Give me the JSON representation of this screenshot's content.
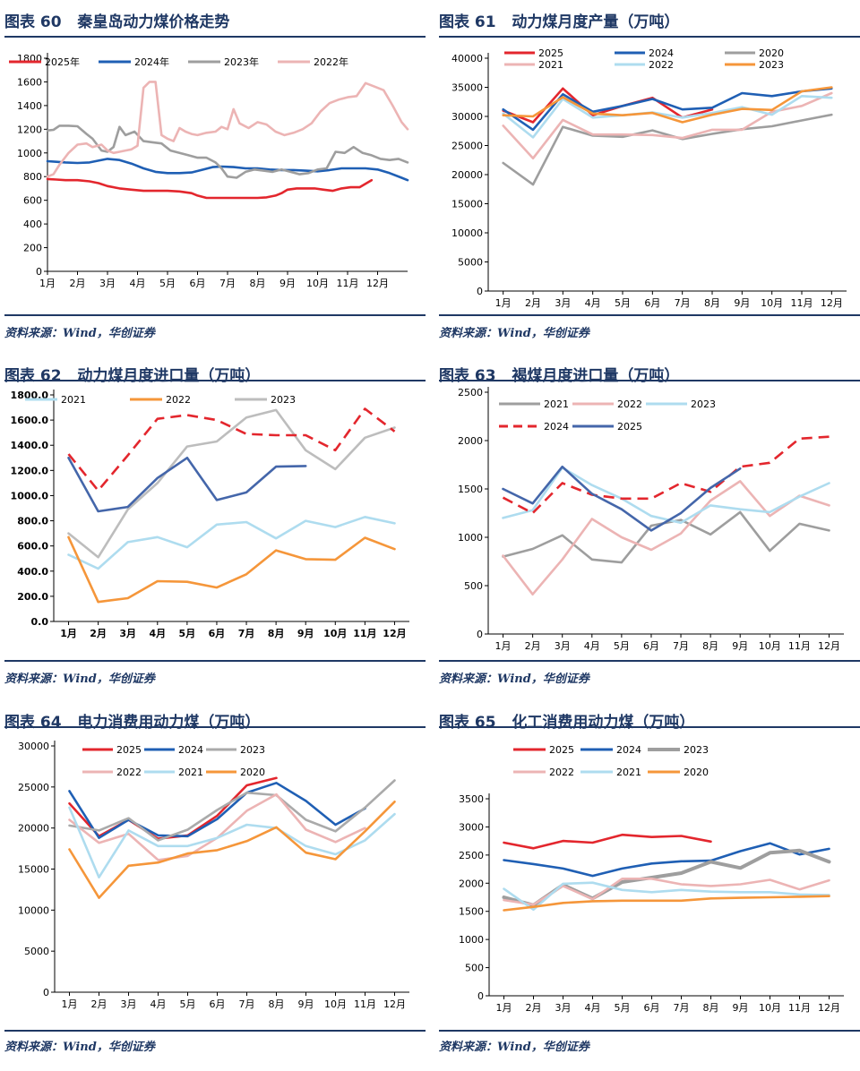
{
  "source_text": "资料来源：Wind，华创证券",
  "figures": [
    {
      "id": "fig60",
      "title": "图表 60   秦皇岛动力煤价格走势"
    },
    {
      "id": "fig61",
      "title": "图表 61   动力煤月度产量（万吨）"
    },
    {
      "id": "fig62",
      "title": "图表 62   动力煤月度进口量（万吨）"
    },
    {
      "id": "fig63",
      "title": "图表 63   褐煤月度进口量（万吨）"
    },
    {
      "id": "fig64",
      "title": "图表 64   电力消费用动力煤（万吨）"
    },
    {
      "id": "fig65",
      "title": "图表 65   化工消费用动力煤（万吨）"
    }
  ],
  "chart_data": [
    {
      "id": "fig60",
      "type": "line",
      "title": "秦皇岛动力煤价格走势",
      "categories": [
        "1月",
        "2月",
        "3月",
        "4月",
        "5月",
        "6月",
        "7月",
        "8月",
        "9月",
        "10月",
        "11月",
        "12月"
      ],
      "yticks": [
        0,
        200,
        400,
        600,
        800,
        1000,
        1200,
        1400,
        1600,
        1800
      ],
      "ylim": [
        0,
        1800
      ],
      "xlim": [
        0,
        12
      ],
      "tick_decimals": 0,
      "legend_position": "top",
      "series": [
        {
          "name": "2025年",
          "color": "#e3262d",
          "x": [
            0,
            0.3,
            0.6,
            1.0,
            1.4,
            1.7,
            2.0,
            2.4,
            2.8,
            3.2,
            3.6,
            4.0,
            4.4,
            4.8,
            5.0,
            5.3,
            5.7,
            6.0,
            6.5,
            7.0,
            7.3,
            7.6,
            7.8,
            8.0,
            8.3,
            8.6,
            8.9,
            9.2,
            9.5,
            9.8,
            10.1,
            10.4,
            10.8
          ],
          "values": [
            780,
            775,
            770,
            770,
            760,
            745,
            720,
            700,
            690,
            680,
            680,
            680,
            675,
            660,
            640,
            620,
            620,
            620,
            620,
            620,
            625,
            640,
            660,
            690,
            700,
            700,
            700,
            690,
            680,
            700,
            710,
            710,
            770
          ]
        },
        {
          "name": "2024年",
          "color": "#1f5fb4",
          "x": [
            0,
            0.3,
            0.6,
            1.0,
            1.4,
            1.7,
            2.0,
            2.4,
            2.8,
            3.2,
            3.6,
            4.0,
            4.4,
            4.8,
            5.2,
            5.5,
            5.8,
            6.2,
            6.6,
            7.0,
            7.4,
            7.8,
            8.2,
            8.6,
            9.0,
            9.4,
            9.8,
            10.2,
            10.6,
            11.0,
            11.4,
            11.8,
            12.0
          ],
          "values": [
            930,
            925,
            920,
            915,
            920,
            935,
            950,
            940,
            910,
            870,
            840,
            830,
            830,
            835,
            860,
            880,
            885,
            880,
            870,
            870,
            860,
            855,
            855,
            850,
            845,
            855,
            870,
            870,
            870,
            860,
            830,
            790,
            770
          ]
        },
        {
          "name": "2023年",
          "color": "#9e9e9e",
          "x": [
            0,
            0.2,
            0.4,
            0.7,
            1.0,
            1.3,
            1.5,
            1.8,
            2.0,
            2.2,
            2.4,
            2.6,
            2.9,
            3.2,
            3.5,
            3.8,
            4.1,
            4.4,
            4.7,
            5.0,
            5.3,
            5.6,
            5.8,
            6.0,
            6.3,
            6.6,
            6.9,
            7.2,
            7.5,
            7.8,
            8.1,
            8.4,
            8.7,
            9.0,
            9.3,
            9.6,
            9.9,
            10.2,
            10.5,
            10.8,
            11.1,
            11.4,
            11.7,
            12.0
          ],
          "values": [
            1190,
            1195,
            1230,
            1230,
            1225,
            1160,
            1120,
            1020,
            1010,
            1050,
            1220,
            1150,
            1180,
            1100,
            1090,
            1080,
            1020,
            1000,
            980,
            960,
            960,
            920,
            870,
            800,
            790,
            840,
            860,
            850,
            840,
            860,
            840,
            820,
            830,
            860,
            870,
            1010,
            1000,
            1050,
            1000,
            980,
            950,
            940,
            950,
            920
          ]
        },
        {
          "name": "2022年",
          "color": "#ecb4b4",
          "x": [
            0,
            0.2,
            0.4,
            0.7,
            1.0,
            1.3,
            1.5,
            1.8,
            2.0,
            2.2,
            2.4,
            2.6,
            2.8,
            3.0,
            3.2,
            3.4,
            3.6,
            3.8,
            4.0,
            4.2,
            4.4,
            4.6,
            4.8,
            5.0,
            5.3,
            5.6,
            5.8,
            6.0,
            6.2,
            6.4,
            6.7,
            7.0,
            7.3,
            7.6,
            7.9,
            8.2,
            8.5,
            8.8,
            9.1,
            9.4,
            9.7,
            10.0,
            10.3,
            10.6,
            10.9,
            11.2,
            11.5,
            11.8,
            12.0
          ],
          "values": [
            800,
            820,
            900,
            1000,
            1070,
            1080,
            1050,
            1070,
            1020,
            1000,
            1010,
            1020,
            1030,
            1060,
            1550,
            1600,
            1600,
            1150,
            1120,
            1100,
            1210,
            1180,
            1160,
            1150,
            1170,
            1180,
            1220,
            1200,
            1370,
            1250,
            1210,
            1260,
            1240,
            1180,
            1150,
            1170,
            1200,
            1250,
            1350,
            1420,
            1450,
            1470,
            1480,
            1590,
            1560,
            1530,
            1400,
            1260,
            1200
          ]
        }
      ]
    },
    {
      "id": "fig61",
      "type": "line",
      "title": "动力煤月度产量（万吨）",
      "categories": [
        "1月",
        "2月",
        "3月",
        "4月",
        "5月",
        "6月",
        "7月",
        "8月",
        "9月",
        "10月",
        "11月",
        "12月"
      ],
      "yticks": [
        0,
        5000,
        10000,
        15000,
        20000,
        25000,
        30000,
        35000,
        40000
      ],
      "ylim": [
        0,
        40000
      ],
      "tick_decimals": 0,
      "legend_position": "top",
      "series": [
        {
          "name": "2025",
          "color": "#e3262d",
          "values": [
            31000,
            29000,
            34800,
            30200,
            31800,
            33200,
            29800,
            31200,
            null,
            null,
            null,
            null
          ]
        },
        {
          "name": "2024",
          "color": "#1f5fb4",
          "values": [
            31200,
            27700,
            33800,
            30800,
            31800,
            33000,
            31200,
            31500,
            34000,
            33500,
            34300,
            34800
          ]
        },
        {
          "name": "2020",
          "color": "#9e9e9e",
          "values": [
            22000,
            18300,
            28200,
            26700,
            26500,
            27600,
            26100,
            27000,
            27800,
            28300,
            29300,
            30300
          ]
        },
        {
          "name": "2021",
          "color": "#ecb4b4",
          "values": [
            28400,
            22800,
            29400,
            26900,
            26900,
            26800,
            26300,
            27700,
            27700,
            30800,
            31800,
            34000
          ]
        },
        {
          "name": "2022",
          "color": "#aedcef",
          "values": [
            30500,
            26400,
            33000,
            29800,
            30200,
            30700,
            29800,
            30600,
            31600,
            30300,
            33500,
            33200
          ]
        },
        {
          "name": "2023",
          "color": "#f5963a",
          "values": [
            30200,
            30000,
            33300,
            30500,
            30200,
            30600,
            29000,
            30300,
            31300,
            31100,
            34300,
            35000
          ]
        }
      ]
    },
    {
      "id": "fig62",
      "type": "line",
      "title": "动力煤月度进口量（万吨）",
      "categories": [
        "1月",
        "2月",
        "3月",
        "4月",
        "5月",
        "6月",
        "7月",
        "8月",
        "9月",
        "10月",
        "11月",
        "12月"
      ],
      "yticks": [
        0,
        200,
        400,
        600,
        800,
        1000,
        1200,
        1400,
        1600,
        1800
      ],
      "ylim": [
        0,
        1800
      ],
      "tick_decimals": 1,
      "legend_position": "top",
      "series": [
        {
          "name": "2021",
          "color": "#aedcef",
          "values": [
            530,
            420,
            630,
            670,
            590,
            770,
            790,
            660,
            800,
            750,
            830,
            780
          ]
        },
        {
          "name": "2022",
          "color": "#f5963a",
          "values": [
            670,
            155,
            185,
            320,
            315,
            270,
            375,
            565,
            495,
            490,
            665,
            575
          ]
        },
        {
          "name": "2023",
          "color": "#bdbdbd",
          "values": [
            700,
            510,
            890,
            1100,
            1390,
            1430,
            1620,
            1680,
            1360,
            1210,
            1460,
            1540
          ]
        },
        {
          "name": "2024",
          "color": "#e3262d",
          "dashed": true,
          "show_legend": false,
          "values": [
            1330,
            1040,
            1320,
            1610,
            1640,
            1600,
            1490,
            1480,
            1480,
            1360,
            1690,
            1510
          ]
        },
        {
          "name": "2025",
          "color": "#4466aa",
          "show_legend": false,
          "values": [
            1300,
            875,
            910,
            1140,
            1300,
            965,
            1025,
            1230,
            1235,
            null,
            null,
            null
          ]
        }
      ]
    },
    {
      "id": "fig63",
      "type": "line",
      "title": "褐煤月度进口量（万吨）",
      "categories": [
        "1月",
        "2月",
        "3月",
        "4月",
        "5月",
        "6月",
        "7月",
        "8月",
        "9月",
        "10月",
        "11月",
        "12月"
      ],
      "yticks": [
        0,
        500,
        1000,
        1500,
        2000,
        2500
      ],
      "ylim": [
        0,
        2500
      ],
      "tick_decimals": 0,
      "legend_position": "top",
      "series": [
        {
          "name": "2021",
          "color": "#9e9e9e",
          "values": [
            800,
            880,
            1020,
            770,
            740,
            1120,
            1180,
            1030,
            1260,
            860,
            1140,
            1070
          ]
        },
        {
          "name": "2022",
          "color": "#ecb4b4",
          "values": [
            810,
            410,
            770,
            1190,
            1000,
            870,
            1040,
            1380,
            1580,
            1220,
            1430,
            1330
          ]
        },
        {
          "name": "2023",
          "color": "#aedcef",
          "values": [
            1200,
            1280,
            1720,
            1540,
            1400,
            1220,
            1150,
            1330,
            1290,
            1260,
            1420,
            1560
          ]
        },
        {
          "name": "2024",
          "color": "#e3262d",
          "dashed": true,
          "values": [
            1410,
            1250,
            1560,
            1440,
            1400,
            1400,
            1560,
            1470,
            1730,
            1770,
            2020,
            2040
          ]
        },
        {
          "name": "2025",
          "color": "#4466aa",
          "values": [
            1500,
            1350,
            1730,
            1450,
            1290,
            1070,
            1250,
            1510,
            1710,
            null,
            null,
            null
          ]
        }
      ]
    },
    {
      "id": "fig64",
      "type": "line",
      "title": "电力消费用动力煤（万吨）",
      "categories": [
        "1月",
        "2月",
        "3月",
        "4月",
        "5月",
        "6月",
        "7月",
        "8月",
        "9月",
        "10月",
        "11月",
        "12月"
      ],
      "yticks": [
        0,
        5000,
        10000,
        15000,
        20000,
        25000,
        30000
      ],
      "ylim": [
        0,
        30000
      ],
      "tick_decimals": 0,
      "legend_position": "top",
      "series": [
        {
          "name": "2025",
          "color": "#e3262d",
          "values": [
            23000,
            19000,
            21000,
            18700,
            19100,
            21500,
            25200,
            26100,
            null,
            null,
            null,
            null
          ]
        },
        {
          "name": "2024",
          "color": "#1f5fb4",
          "values": [
            24500,
            18800,
            21000,
            19100,
            19000,
            21100,
            24300,
            25500,
            23300,
            20400,
            22400,
            null
          ]
        },
        {
          "name": "2023",
          "color": "#aaaaaa",
          "values": [
            20300,
            19700,
            21200,
            18500,
            19800,
            22200,
            24300,
            24000,
            21000,
            19600,
            22500,
            25800
          ]
        },
        {
          "name": "2022",
          "color": "#ecb4b4",
          "values": [
            21000,
            18200,
            19300,
            16100,
            16600,
            18800,
            22100,
            24100,
            19800,
            18300,
            20000,
            null
          ]
        },
        {
          "name": "2021",
          "color": "#aedcef",
          "values": [
            22500,
            14000,
            19700,
            17800,
            17800,
            18800,
            20400,
            20000,
            17800,
            16800,
            18500,
            21700
          ]
        },
        {
          "name": "2020",
          "color": "#f5963a",
          "values": [
            17400,
            11500,
            15400,
            15800,
            16900,
            17300,
            18400,
            20100,
            17000,
            16200,
            19600,
            23200
          ]
        }
      ]
    },
    {
      "id": "fig65",
      "type": "line",
      "title": "化工消费用动力煤（万吨）",
      "categories": [
        "1月",
        "2月",
        "3月",
        "4月",
        "5月",
        "6月",
        "7月",
        "8月",
        "9月",
        "10月",
        "11月",
        "12月"
      ],
      "yticks": [
        0,
        500,
        1000,
        1500,
        2000,
        2500,
        3000,
        3500
      ],
      "ylim": [
        0,
        3500
      ],
      "tick_decimals": 0,
      "legend_position": "top",
      "series": [
        {
          "name": "2025",
          "color": "#e3262d",
          "values": [
            2720,
            2620,
            2750,
            2720,
            2860,
            2820,
            2840,
            2740,
            null,
            null,
            null,
            null
          ]
        },
        {
          "name": "2024",
          "color": "#1f5fb4",
          "values": [
            2410,
            2340,
            2260,
            2130,
            2260,
            2350,
            2390,
            2400,
            2570,
            2710,
            2510,
            2610
          ]
        },
        {
          "name": "2023",
          "color": "#9e9e9e",
          "width": 4,
          "values": [
            1750,
            1610,
            1970,
            1730,
            2020,
            2100,
            2180,
            2380,
            2270,
            2540,
            2580,
            2380
          ]
        },
        {
          "name": "2022",
          "color": "#ecb4b4",
          "values": [
            1700,
            1620,
            1950,
            1720,
            2080,
            2080,
            1980,
            1950,
            1980,
            2060,
            1890,
            2050
          ]
        },
        {
          "name": "2021",
          "color": "#aedcef",
          "values": [
            1900,
            1530,
            1990,
            2010,
            1880,
            1840,
            1880,
            1850,
            1840,
            1840,
            1800,
            1790
          ]
        },
        {
          "name": "2020",
          "color": "#f5963a",
          "values": [
            1520,
            1580,
            1650,
            1680,
            1690,
            1690,
            1690,
            1730,
            1740,
            1750,
            1760,
            1770
          ]
        }
      ]
    }
  ]
}
